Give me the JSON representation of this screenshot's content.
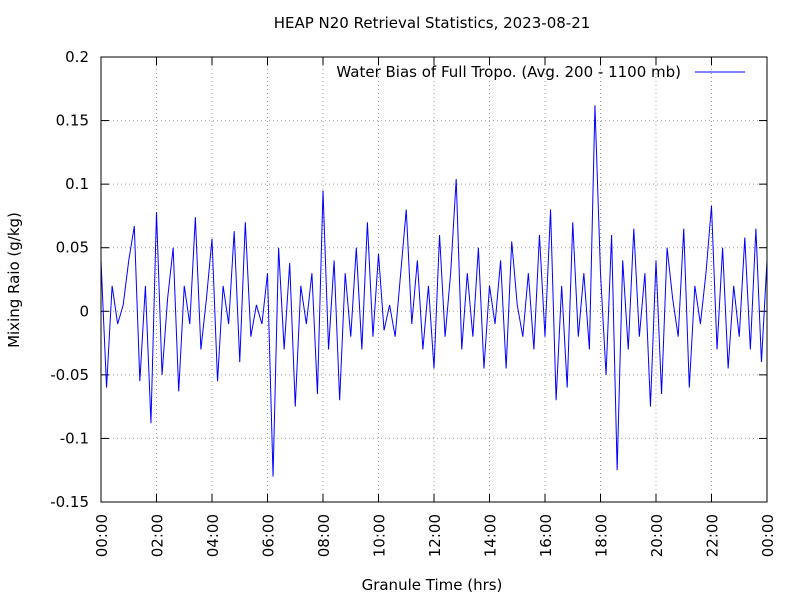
{
  "chart_data": {
    "type": "line",
    "title": "HEAP N20 Retrieval Statistics, 2023-08-21",
    "xlabel": "Granule Time (hrs)",
    "ylabel": "Mixing Raio (g/kg)",
    "legend": "top-right",
    "grid": true,
    "xlim": [
      0,
      24
    ],
    "xticks": [
      {
        "value": 0,
        "label": "00:00"
      },
      {
        "value": 2,
        "label": "02:00"
      },
      {
        "value": 4,
        "label": "04:00"
      },
      {
        "value": 6,
        "label": "06:00"
      },
      {
        "value": 8,
        "label": "08:00"
      },
      {
        "value": 10,
        "label": "10:00"
      },
      {
        "value": 12,
        "label": "12:00"
      },
      {
        "value": 14,
        "label": "14:00"
      },
      {
        "value": 16,
        "label": "16:00"
      },
      {
        "value": 18,
        "label": "18:00"
      },
      {
        "value": 20,
        "label": "20:00"
      },
      {
        "value": 22,
        "label": "22:00"
      },
      {
        "value": 24,
        "label": "00:00"
      }
    ],
    "ylim": [
      -0.15,
      0.2
    ],
    "yticks": [
      -0.15,
      -0.1,
      -0.05,
      0,
      0.05,
      0.1,
      0.15,
      0.2
    ],
    "x": [
      0,
      0.2,
      0.4,
      0.6,
      0.8,
      1,
      1.2,
      1.4,
      1.6,
      1.8,
      2,
      2.2,
      2.4,
      2.6,
      2.8,
      3,
      3.2,
      3.4,
      3.6,
      3.8,
      4,
      4.2,
      4.4,
      4.6,
      4.8,
      5,
      5.2,
      5.4,
      5.6,
      5.8,
      6,
      6.2,
      6.4,
      6.6,
      6.8,
      7,
      7.2,
      7.4,
      7.6,
      7.8,
      8,
      8.2,
      8.4,
      8.6,
      8.8,
      9,
      9.2,
      9.4,
      9.6,
      9.8,
      10,
      10.2,
      10.4,
      10.6,
      10.8,
      11,
      11.2,
      11.4,
      11.6,
      11.8,
      12,
      12.2,
      12.4,
      12.6,
      12.8,
      13,
      13.2,
      13.4,
      13.6,
      13.8,
      14,
      14.2,
      14.4,
      14.6,
      14.8,
      15,
      15.2,
      15.4,
      15.6,
      15.8,
      16,
      16.2,
      16.4,
      16.6,
      16.8,
      17,
      17.2,
      17.4,
      17.6,
      17.8,
      18,
      18.2,
      18.4,
      18.6,
      18.8,
      19,
      19.2,
      19.4,
      19.6,
      19.8,
      20,
      20.2,
      20.4,
      20.6,
      20.8,
      21,
      21.2,
      21.4,
      21.6,
      21.8,
      22,
      22.2,
      22.4,
      22.6,
      22.8,
      23,
      23.2,
      23.4,
      23.6,
      23.8,
      24
    ],
    "series": [
      {
        "name": "Water Bias of Full Tropo. (Avg. 200 - 1100 mb)",
        "color": "#0000ff",
        "values": [
          0.04,
          -0.06,
          0.02,
          -0.01,
          0.005,
          0.04,
          0.067,
          -0.055,
          0.02,
          -0.088,
          0.078,
          -0.05,
          0.01,
          0.05,
          -0.063,
          0.02,
          -0.01,
          0.074,
          -0.03,
          0.01,
          0.057,
          -0.055,
          0.02,
          -0.01,
          0.063,
          -0.04,
          0.07,
          -0.02,
          0.005,
          -0.01,
          0.03,
          -0.13,
          0.05,
          -0.03,
          0.038,
          -0.075,
          0.02,
          -0.01,
          0.03,
          -0.065,
          0.095,
          -0.03,
          0.04,
          -0.07,
          0.03,
          -0.02,
          0.05,
          -0.03,
          0.07,
          -0.02,
          0.045,
          -0.015,
          0.005,
          -0.02,
          0.03,
          0.08,
          -0.01,
          0.04,
          -0.03,
          0.02,
          -0.045,
          0.06,
          -0.02,
          0.03,
          0.104,
          -0.03,
          0.03,
          -0.02,
          0.05,
          -0.045,
          0.02,
          -0.01,
          0.04,
          -0.045,
          0.055,
          0.005,
          -0.02,
          0.03,
          -0.03,
          0.06,
          -0.02,
          0.08,
          -0.07,
          0.02,
          -0.06,
          0.07,
          -0.02,
          0.03,
          -0.03,
          0.162,
          0.03,
          -0.05,
          0.06,
          -0.125,
          0.04,
          -0.03,
          0.065,
          -0.02,
          0.03,
          -0.075,
          0.04,
          -0.065,
          0.05,
          0.01,
          -0.02,
          0.065,
          -0.06,
          0.02,
          -0.01,
          0.03,
          0.083,
          -0.03,
          0.05,
          -0.045,
          0.02,
          -0.02,
          0.058,
          -0.03,
          0.065,
          -0.04,
          0.04
        ]
      }
    ]
  }
}
